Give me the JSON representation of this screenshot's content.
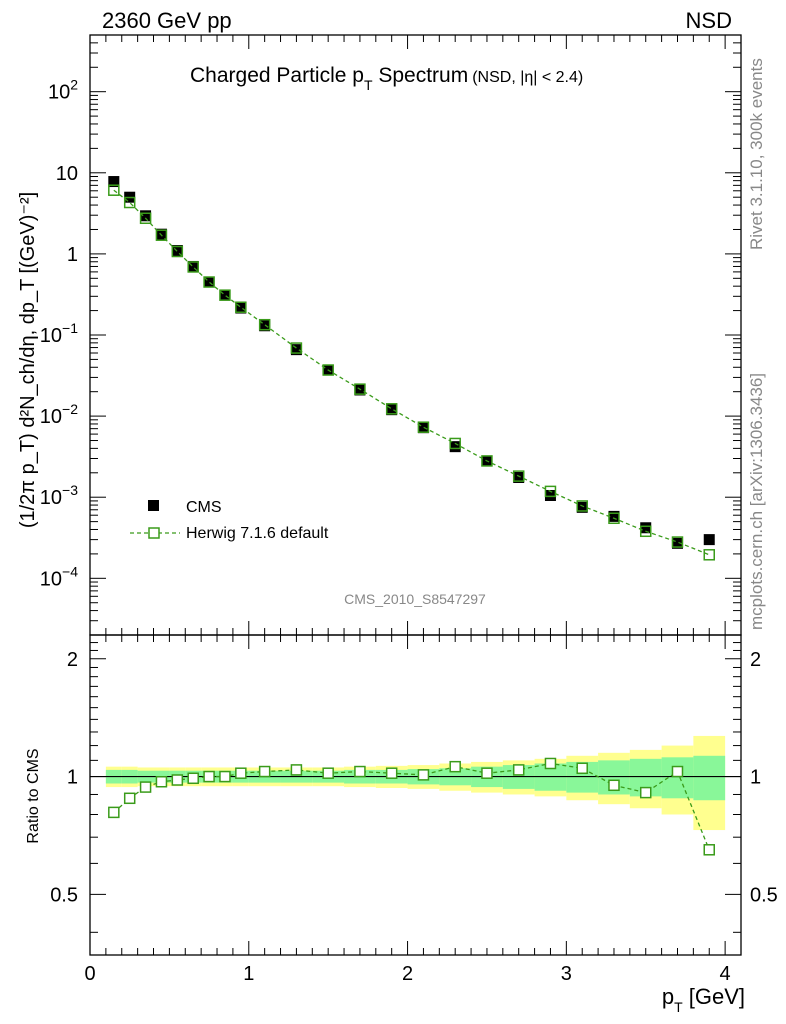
{
  "header": {
    "left": "2360 GeV pp",
    "right": "NSD"
  },
  "side_text": {
    "rivet": "Rivet 3.1.10,  300k events",
    "mcplots": "mcplots.cern.ch [arXiv:1306.3436]"
  },
  "chart_data": {
    "type": "scatter",
    "title_main": "Charged Particle p",
    "title_sub": "T",
    "title_rest": " Spectrum",
    "title_suffix": "(NSD, |η| < 2.4)",
    "analysis_id": "CMS_2010_S8547297",
    "xlabel": "p",
    "xlabel_sub": "T",
    "xlabel_unit": " [GeV]",
    "ylabel": "(1/2π p_T) d²N_ch/dη, dp_T [(GeV)⁻²]",
    "ratio_ylabel": "Ratio to CMS",
    "xlim": [
      0,
      4.1
    ],
    "ylim": [
      2e-05,
      500
    ],
    "ratio_ylim": [
      0.35,
      2.3
    ],
    "x_ticks": [
      "0",
      "1",
      "2",
      "3",
      "4"
    ],
    "y_ticks": [
      {
        "base": "10",
        "exp": "2",
        "value": 100
      },
      {
        "base": "10",
        "exp": "",
        "value": 10
      },
      {
        "base": "1",
        "exp": "",
        "value": 1
      },
      {
        "base": "10",
        "exp": "−1",
        "value": 0.1
      },
      {
        "base": "10",
        "exp": "−2",
        "value": 0.01
      },
      {
        "base": "10",
        "exp": "−3",
        "value": 0.001
      },
      {
        "base": "10",
        "exp": "−4",
        "value": 0.0001
      }
    ],
    "ratio_ticks": [
      {
        "label": "2",
        "value": 2
      },
      {
        "label": "1",
        "value": 1
      },
      {
        "label": "0.5",
        "value": 0.5
      }
    ],
    "legend": [
      {
        "label": "CMS",
        "color": "#000000",
        "marker": "filled-square"
      },
      {
        "label": "Herwig 7.1.6 default",
        "color": "#3a9b1a",
        "marker": "open-square"
      }
    ],
    "x": [
      0.15,
      0.25,
      0.35,
      0.45,
      0.55,
      0.65,
      0.75,
      0.85,
      0.95,
      1.1,
      1.3,
      1.5,
      1.7,
      1.9,
      2.1,
      2.3,
      2.5,
      2.7,
      2.9,
      3.1,
      3.3,
      3.5,
      3.7,
      3.9
    ],
    "bin_edges": [
      0.1,
      0.2,
      0.3,
      0.4,
      0.5,
      0.6,
      0.7,
      0.8,
      0.9,
      1.0,
      1.2,
      1.4,
      1.6,
      1.8,
      2.0,
      2.2,
      2.4,
      2.6,
      2.8,
      3.0,
      3.2,
      3.4,
      3.6,
      3.8,
      4.0
    ],
    "series": [
      {
        "name": "CMS",
        "values": [
          7.8,
          5.0,
          2.95,
          1.75,
          1.1,
          0.7,
          0.45,
          0.31,
          0.215,
          0.13,
          0.066,
          0.037,
          0.021,
          0.012,
          0.0072,
          0.0042,
          0.0028,
          0.00175,
          0.00105,
          0.00075,
          0.00058,
          0.00042,
          0.00027,
          0.0003
        ]
      },
      {
        "name": "Herwig 7.1.6 default",
        "values": [
          6.1,
          4.3,
          2.75,
          1.7,
          1.07,
          0.69,
          0.45,
          0.31,
          0.22,
          0.134,
          0.069,
          0.037,
          0.0215,
          0.0123,
          0.0073,
          0.0046,
          0.0028,
          0.00182,
          0.00118,
          0.00078,
          0.00055,
          0.00038,
          0.00028,
          0.000195
        ]
      }
    ],
    "ratio": [
      0.81,
      0.88,
      0.94,
      0.97,
      0.98,
      0.99,
      1.0,
      1.0,
      1.02,
      1.03,
      1.04,
      1.02,
      1.03,
      1.02,
      1.01,
      1.06,
      1.02,
      1.04,
      1.08,
      1.05,
      0.95,
      0.91,
      1.03,
      0.65
    ],
    "band_inner": [
      0.04,
      0.04,
      0.035,
      0.035,
      0.035,
      0.035,
      0.035,
      0.035,
      0.035,
      0.035,
      0.035,
      0.035,
      0.04,
      0.04,
      0.045,
      0.05,
      0.06,
      0.07,
      0.08,
      0.09,
      0.1,
      0.11,
      0.12,
      0.13
    ],
    "band_outer": [
      0.06,
      0.06,
      0.055,
      0.055,
      0.055,
      0.055,
      0.055,
      0.055,
      0.055,
      0.055,
      0.055,
      0.055,
      0.06,
      0.065,
      0.07,
      0.08,
      0.09,
      0.1,
      0.11,
      0.13,
      0.15,
      0.17,
      0.2,
      0.27
    ],
    "colors": {
      "data": "#000000",
      "mc": "#3a9b1a",
      "band_inner": "#89f799",
      "band_outer": "#ffff8f"
    }
  }
}
